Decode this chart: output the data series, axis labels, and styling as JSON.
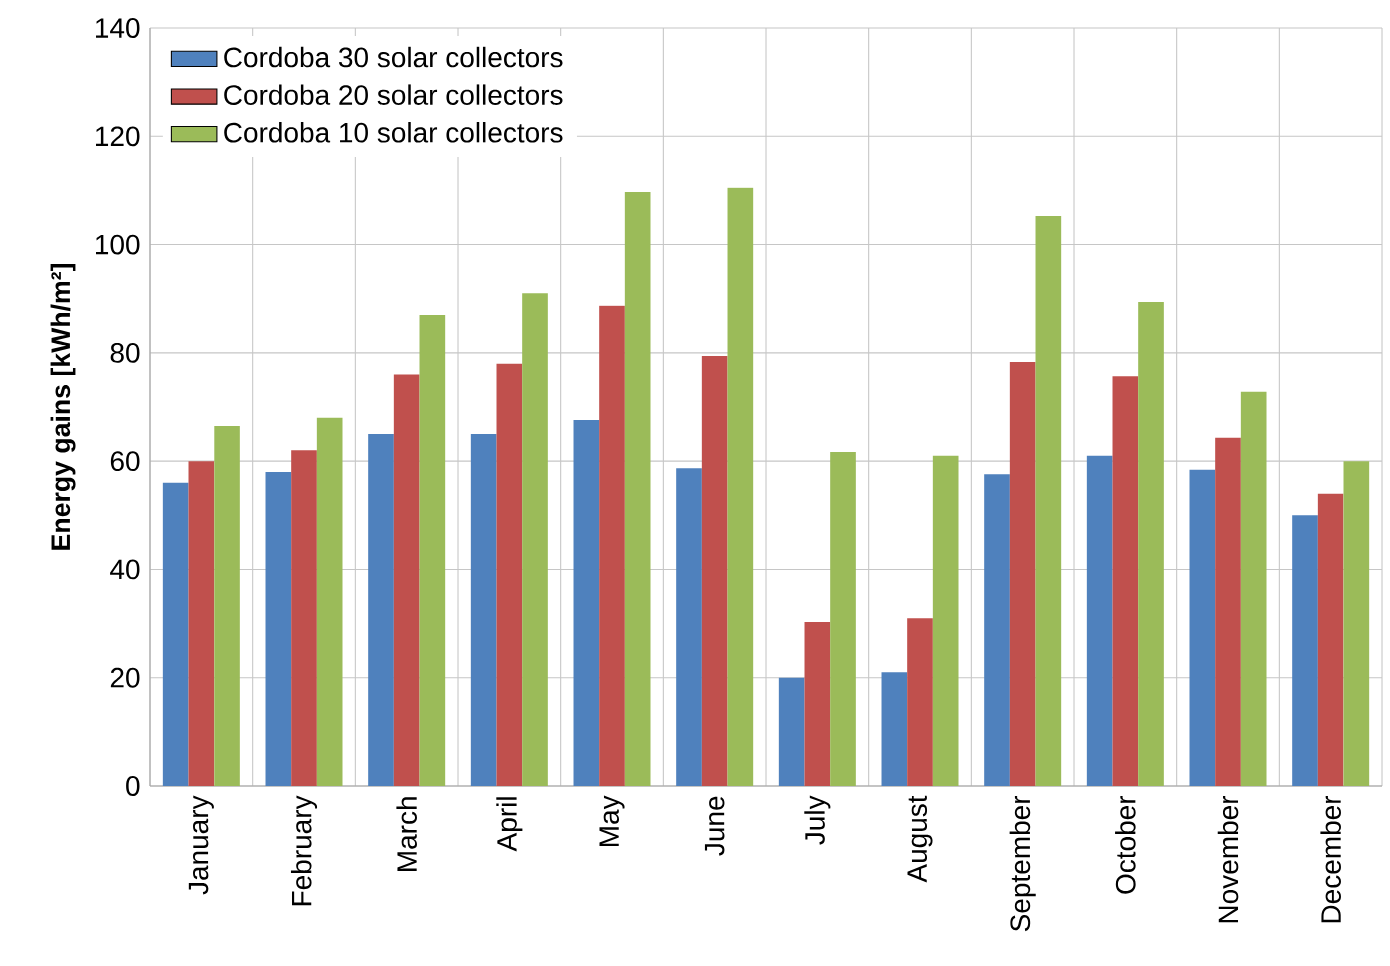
{
  "chart_data": {
    "type": "bar",
    "ylabel": "Energy gains [kWh/m²]",
    "categories": [
      "January",
      "February",
      "March",
      "April",
      "May",
      "June",
      "July",
      "August",
      "September",
      "October",
      "November",
      "December"
    ],
    "series": [
      {
        "name": "Cordoba 30 solar collectors",
        "color": "#4f81bd",
        "values": [
          56,
          58,
          65,
          65,
          67.6,
          58.7,
          20,
          21,
          57.6,
          61,
          58.4,
          50
        ]
      },
      {
        "name": "Cordoba 20 solar collectors",
        "color": "#c0504d",
        "values": [
          60,
          62,
          76,
          78,
          88.7,
          79.4,
          30.3,
          31,
          78.3,
          75.7,
          64.3,
          54
        ]
      },
      {
        "name": "Cordoba 10 solar collectors",
        "color": "#9bbb59",
        "values": [
          66.5,
          68,
          87,
          91,
          109.7,
          110.5,
          61.7,
          61,
          105.3,
          89.4,
          72.8,
          60
        ]
      }
    ],
    "ylim": [
      0,
      140
    ],
    "yticks": [
      0,
      20,
      40,
      60,
      80,
      100,
      120,
      140
    ],
    "grid": true,
    "legend": "top left"
  }
}
